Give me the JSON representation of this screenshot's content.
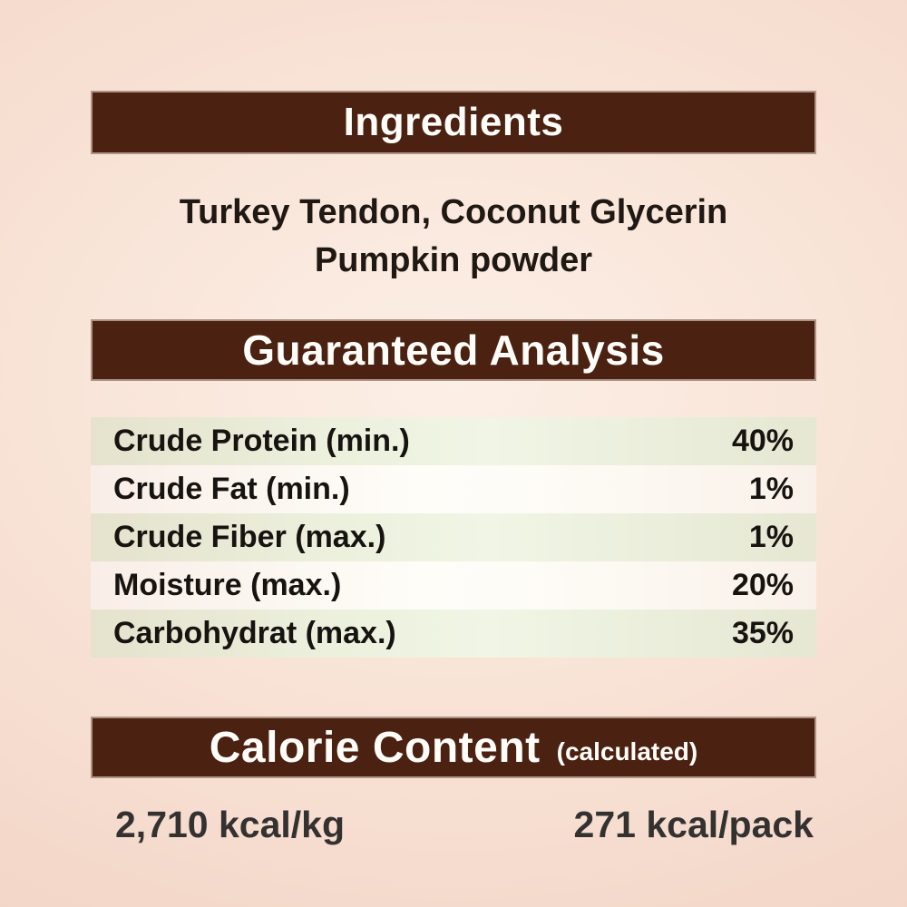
{
  "ingredients": {
    "title": "Ingredients",
    "line1": "Turkey Tendon, Coconut Glycerin",
    "line2": "Pumpkin powder"
  },
  "analysis": {
    "title": "Guaranteed Analysis",
    "rows": [
      {
        "label": "Crude Protein (min.)",
        "value": "40%"
      },
      {
        "label": "Crude Fat (min.)",
        "value": "1%"
      },
      {
        "label": "Crude Fiber (max.)",
        "value": "1%"
      },
      {
        "label": "Moisture (max.)",
        "value": "20%"
      },
      {
        "label": "Carbohydrat (max.)",
        "value": "35%"
      }
    ]
  },
  "calories": {
    "title": "Calorie Content",
    "subtitle": "(calculated)",
    "per_kg": "2,710 kcal/kg",
    "per_pack": "271 kcal/pack"
  },
  "colors": {
    "header_bar": "#4b2211",
    "header_text": "#fffdf9",
    "row_green": "#e9ecd8",
    "row_light": "#fdf8f2",
    "background": "#f3d7c8",
    "body_text": "#201813"
  }
}
